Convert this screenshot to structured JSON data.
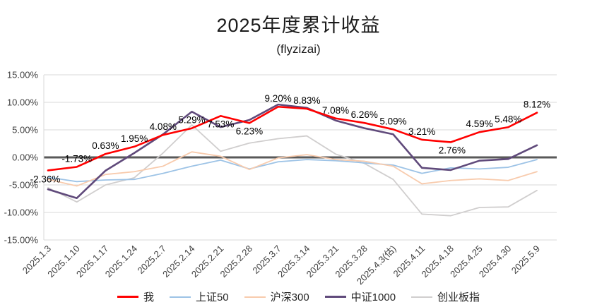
{
  "chart_data": {
    "type": "line",
    "title": "2025年度累计收益",
    "subtitle": "(flyzizai)",
    "legend_position": "bottom",
    "grid": true,
    "y_axis": {
      "min": -15,
      "max": 15,
      "step": 5,
      "tick_labels": [
        "15.00%",
        "10.00%",
        "5.00%",
        "0.00%",
        "-5.00%",
        "-10.00%",
        "-15.00%"
      ]
    },
    "categories": [
      "2025.1.3",
      "2025.1.10",
      "2025.1.17",
      "2025.1.24",
      "2025.2.7",
      "2025.2.14",
      "2025.2.21",
      "2025.2.28",
      "2025.3.7",
      "2025.3.14",
      "2025.3.21",
      "2025.3.28",
      "2025.4.3(估)",
      "2025.4.11",
      "2025.4.18",
      "2025.4.25",
      "2025.4.30",
      "2025.5.9"
    ],
    "series": [
      {
        "key": "me",
        "name": "我",
        "color": "#FF0000",
        "width": 2.6,
        "labeled": true,
        "values": [
          -2.36,
          -1.73,
          0.63,
          1.95,
          4.08,
          5.29,
          7.53,
          6.23,
          9.2,
          8.83,
          7.08,
          6.26,
          5.09,
          3.21,
          2.76,
          4.59,
          5.48,
          8.12
        ]
      },
      {
        "key": "sse50",
        "name": "上证50",
        "color": "#9DC3E6",
        "width": 1.8,
        "labeled": false,
        "values": [
          -3.6,
          -4.4,
          -4.1,
          -4.0,
          -2.9,
          -1.6,
          -0.5,
          -2.1,
          -0.8,
          -0.4,
          -0.6,
          -1.0,
          -1.4,
          -2.9,
          -1.9,
          -2.1,
          -1.8,
          -0.4
        ]
      },
      {
        "key": "csi300",
        "name": "沪深300",
        "color": "#F8CBAD",
        "width": 1.8,
        "labeled": false,
        "values": [
          -4.0,
          -5.2,
          -3.1,
          -2.6,
          -1.6,
          1.0,
          0.2,
          -2.2,
          -0.1,
          0.5,
          -0.4,
          -0.7,
          -1.6,
          -4.8,
          -4.2,
          -3.9,
          -4.2,
          -2.6
        ]
      },
      {
        "key": "csi1000",
        "name": "中证1000",
        "color": "#604A7B",
        "width": 2.6,
        "labeled": false,
        "values": [
          -5.8,
          -7.4,
          -2.4,
          0.8,
          4.2,
          8.3,
          5.5,
          6.8,
          9.6,
          9.0,
          6.7,
          5.3,
          4.2,
          -1.9,
          -2.3,
          -0.6,
          -0.3,
          2.2
        ]
      },
      {
        "key": "chinext",
        "name": "创业板指",
        "color": "#D0CECE",
        "width": 1.8,
        "labeled": false,
        "values": [
          -5.5,
          -8.1,
          -5.0,
          -3.7,
          0.8,
          5.9,
          1.1,
          2.6,
          3.4,
          3.9,
          0.6,
          -1.1,
          -4.0,
          -10.3,
          -10.6,
          -9.1,
          -9.0,
          -6.0
        ]
      }
    ],
    "data_labels": [
      "-2.36%",
      "-1.73%",
      "0.63%",
      "1.95%",
      "4.08%",
      "5.29%",
      "7.53%",
      "6.23%",
      "9.20%",
      "8.83%",
      "7.08%",
      "6.26%",
      "5.09%",
      "3.21%",
      "2.76%",
      "4.59%",
      "5.48%",
      "8.12%"
    ],
    "colors": {
      "zero_line": "#595959",
      "gridline": "#D9D9D9",
      "axis_text": "#404040",
      "label_text": "#000000"
    }
  }
}
